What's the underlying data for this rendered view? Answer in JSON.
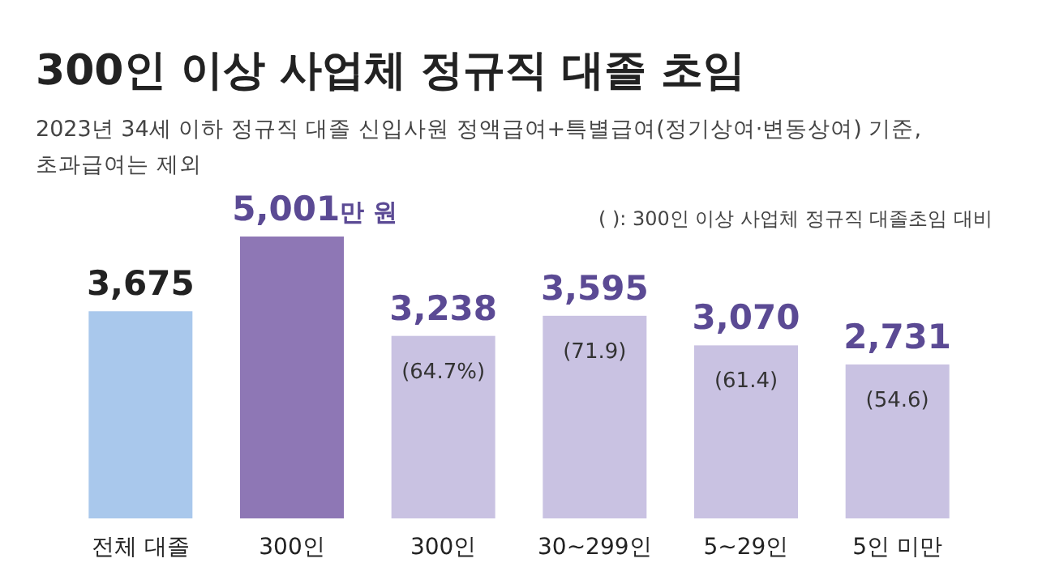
{
  "chart_data": {
    "type": "bar",
    "title": "300인 이상 사업체 정규직 대졸 초임",
    "subtitle": "2023년 34세 이하 정규직 대졸 신입사원 정액급여+특별급여(정기상여·변동상여) 기준,\n초과급여는 제외",
    "categories": [
      "전체 대졸",
      "300인",
      "300인",
      "30~299인",
      "5~29인",
      "5인 미만"
    ],
    "values": [
      3675,
      5001,
      3238,
      3595,
      3070,
      2731
    ],
    "colors": [
      "#a9c8ec",
      "#8e77b5",
      "#c9c2e2",
      "#c9c2e2",
      "#c9c2e2",
      "#c9c2e2"
    ],
    "value_labels": [
      "3,675",
      "5,001만 원",
      "3,238",
      "3,595",
      "3,070",
      "2,731"
    ],
    "annotations": [
      "( ): 300인 이상 사업체 정규직 대졸초임 대비",
      "(64.7%)",
      "(71.9)",
      "(61.4)",
      "(54.6)"
    ]
  }
}
